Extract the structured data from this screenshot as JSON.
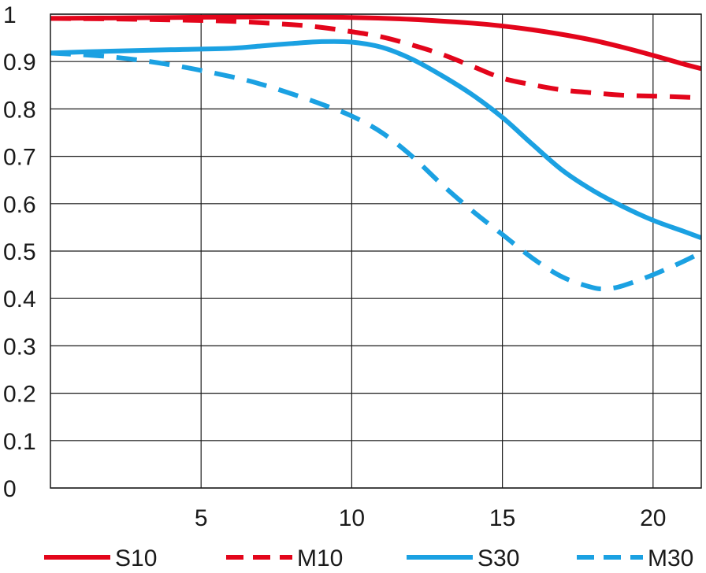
{
  "chart_data": {
    "type": "line",
    "title": "",
    "xlabel": "",
    "ylabel": "",
    "xlim": [
      0,
      21.6
    ],
    "ylim": [
      0,
      1
    ],
    "x_ticks": [
      5,
      10,
      15,
      20
    ],
    "y_ticks": [
      0,
      0.1,
      0.2,
      0.3,
      0.4,
      0.5,
      0.6,
      0.7,
      0.8,
      0.9,
      1
    ],
    "y_tick_labels": [
      "0",
      "0.1",
      "0.2",
      "0.3",
      "0.4",
      "0.5",
      "0.6",
      "0.7",
      "0.8",
      "0.9",
      "1"
    ],
    "x_tick_labels": [
      "5",
      "10",
      "15",
      "20"
    ],
    "grid": true,
    "legend_position": "bottom",
    "series": [
      {
        "name": "S10",
        "color": "#e3051b",
        "dash": "solid",
        "x": [
          0,
          2,
          4,
          6,
          8,
          10,
          12,
          14,
          15,
          16,
          17,
          18,
          19,
          20,
          21,
          21.6
        ],
        "y": [
          0.991,
          0.992,
          0.993,
          0.994,
          0.994,
          0.993,
          0.989,
          0.981,
          0.975,
          0.967,
          0.957,
          0.945,
          0.93,
          0.913,
          0.895,
          0.885
        ]
      },
      {
        "name": "M10",
        "color": "#e3051b",
        "dash": "dashed",
        "x": [
          0,
          2,
          4,
          6,
          8,
          9,
          10,
          11,
          12,
          13,
          14,
          15,
          16,
          17,
          18,
          19,
          20,
          21,
          21.6
        ],
        "y": [
          0.991,
          0.99,
          0.988,
          0.985,
          0.978,
          0.972,
          0.963,
          0.952,
          0.935,
          0.915,
          0.89,
          0.865,
          0.851,
          0.84,
          0.834,
          0.829,
          0.827,
          0.825,
          0.823
        ]
      },
      {
        "name": "S30",
        "color": "#1ba1e2",
        "dash": "solid",
        "x": [
          0,
          2,
          4,
          6,
          7,
          8,
          9,
          10,
          11,
          12,
          13,
          14,
          15,
          16,
          17,
          18,
          19,
          20,
          21,
          21.6
        ],
        "y": [
          0.918,
          0.922,
          0.925,
          0.928,
          0.933,
          0.938,
          0.942,
          0.941,
          0.93,
          0.905,
          0.87,
          0.83,
          0.782,
          0.725,
          0.67,
          0.628,
          0.594,
          0.565,
          0.542,
          0.528
        ]
      },
      {
        "name": "M30",
        "color": "#1ba1e2",
        "dash": "dashed",
        "x": [
          0,
          2,
          4,
          6,
          7,
          8,
          9,
          10,
          11,
          12,
          13,
          14,
          15,
          16,
          17,
          18,
          18.5,
          19,
          20,
          21,
          21.6
        ],
        "y": [
          0.918,
          0.91,
          0.893,
          0.868,
          0.852,
          0.832,
          0.81,
          0.785,
          0.75,
          0.7,
          0.64,
          0.585,
          0.535,
          0.485,
          0.445,
          0.423,
          0.421,
          0.427,
          0.45,
          0.478,
          0.497
        ]
      }
    ]
  }
}
